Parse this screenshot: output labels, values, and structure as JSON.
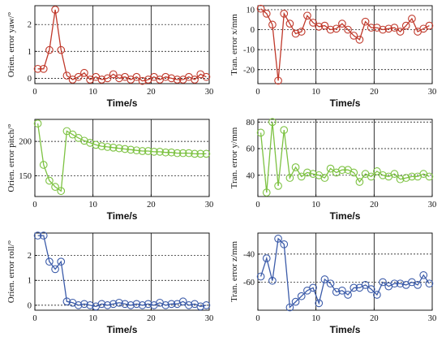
{
  "chart_data": [
    {
      "type": "line",
      "ylabel": "Orien. error yaw/°",
      "xlabel": "Time/s",
      "xlim": [
        0,
        30
      ],
      "ylim": [
        -0.2,
        2.7
      ],
      "xticks": [
        0,
        10,
        20,
        30
      ],
      "yticks": [
        0,
        1,
        2
      ],
      "grid": true,
      "color": "#c0392b",
      "x": [
        0.5,
        1.5,
        2.5,
        3.5,
        4.5,
        5.5,
        6.5,
        7.5,
        8.5,
        9.5,
        10.5,
        11.5,
        12.5,
        13.5,
        14.5,
        15.5,
        16.5,
        17.5,
        18.5,
        19.5,
        20.5,
        21.5,
        22.5,
        23.5,
        24.5,
        25.5,
        26.5,
        27.5,
        28.5,
        29.5
      ],
      "y": [
        0.35,
        0.35,
        1.05,
        2.55,
        1.05,
        0.1,
        -0.05,
        0.05,
        0.2,
        -0.05,
        0.05,
        -0.05,
        0.0,
        0.15,
        0.0,
        0.05,
        -0.05,
        0.05,
        -0.1,
        -0.05,
        0.05,
        -0.05,
        0.05,
        0.0,
        -0.05,
        -0.05,
        0.05,
        -0.05,
        0.15,
        0.05
      ]
    },
    {
      "type": "line",
      "ylabel": "Tran. error x/mm",
      "xlabel": "Time/s",
      "xlim": [
        0,
        30
      ],
      "ylim": [
        -27,
        12
      ],
      "xticks": [
        0,
        10,
        20,
        30
      ],
      "yticks": [
        -20,
        -10,
        0,
        10
      ],
      "grid": true,
      "color": "#c0392b",
      "x": [
        0.5,
        1.5,
        2.5,
        3.5,
        4.5,
        5.5,
        6.5,
        7.5,
        8.5,
        9.5,
        10.5,
        11.5,
        12.5,
        13.5,
        14.5,
        15.5,
        16.5,
        17.5,
        18.5,
        19.5,
        20.5,
        21.5,
        22.5,
        23.5,
        24.5,
        25.5,
        26.5,
        27.5,
        28.5,
        29.5
      ],
      "y": [
        10.5,
        8,
        2.5,
        -25.5,
        8,
        3,
        -2,
        -1,
        7,
        3.5,
        1.5,
        2,
        0,
        0.5,
        3,
        0,
        -3,
        -5,
        4,
        1,
        1,
        0,
        0.5,
        1,
        -1,
        2,
        5.5,
        -1,
        0.5,
        2
      ]
    },
    {
      "type": "line",
      "ylabel": "Orien. error pitch/°",
      "xlabel": "Time/s",
      "xlim": [
        0,
        30
      ],
      "ylim": [
        120,
        232
      ],
      "xticks": [
        0,
        10,
        20,
        30
      ],
      "yticks": [
        150,
        200
      ],
      "grid": true,
      "color": "#7dc242",
      "x": [
        0.5,
        1.5,
        2.5,
        3.5,
        4.5,
        5.5,
        6.5,
        7.5,
        8.5,
        9.5,
        10.5,
        11.5,
        12.5,
        13.5,
        14.5,
        15.5,
        16.5,
        17.5,
        18.5,
        19.5,
        20.5,
        21.5,
        22.5,
        23.5,
        24.5,
        25.5,
        26.5,
        27.5,
        28.5,
        29.5
      ],
      "y": [
        226,
        166,
        143,
        134,
        128,
        215,
        210,
        205,
        201,
        198,
        195,
        193,
        192,
        191,
        190,
        189,
        188,
        187,
        186,
        186,
        185,
        185,
        184,
        184,
        183,
        183,
        183,
        182,
        182,
        182
      ]
    },
    {
      "type": "line",
      "ylabel": "Tran. error y/mm",
      "xlabel": "Time/s",
      "xlim": [
        0,
        30
      ],
      "ylim": [
        24,
        82
      ],
      "xticks": [
        0,
        10,
        20,
        30
      ],
      "yticks": [
        40,
        60,
        80
      ],
      "grid": true,
      "color": "#7dc242",
      "x": [
        0.5,
        1.5,
        2.5,
        3.5,
        4.5,
        5.5,
        6.5,
        7.5,
        8.5,
        9.5,
        10.5,
        11.5,
        12.5,
        13.5,
        14.5,
        15.5,
        16.5,
        17.5,
        18.5,
        19.5,
        20.5,
        21.5,
        22.5,
        23.5,
        24.5,
        25.5,
        26.5,
        27.5,
        28.5,
        29.5
      ],
      "y": [
        72,
        27,
        80,
        32,
        74,
        38,
        46,
        39,
        42,
        41,
        40,
        38,
        45,
        42,
        44,
        44,
        42,
        35,
        41,
        39,
        43,
        40,
        39,
        41,
        37,
        38,
        39,
        39,
        41,
        39
      ]
    },
    {
      "type": "line",
      "ylabel": "Orien. error roll/°",
      "xlabel": "Time/s",
      "xlim": [
        0,
        30
      ],
      "ylim": [
        -0.2,
        2.9
      ],
      "xticks": [
        0,
        10,
        20,
        30
      ],
      "yticks": [
        0,
        1,
        2
      ],
      "grid": true,
      "color": "#3b5ba9",
      "x": [
        0.5,
        1.5,
        2.5,
        3.5,
        4.5,
        5.5,
        6.5,
        7.5,
        8.5,
        9.5,
        10.5,
        11.5,
        12.5,
        13.5,
        14.5,
        15.5,
        16.5,
        17.5,
        18.5,
        19.5,
        20.5,
        21.5,
        22.5,
        23.5,
        24.5,
        25.5,
        26.5,
        27.5,
        28.5,
        29.5
      ],
      "y": [
        2.8,
        2.8,
        1.75,
        1.45,
        1.75,
        0.15,
        0.1,
        0.0,
        0.05,
        0.0,
        -0.05,
        0.05,
        0.0,
        0.05,
        0.1,
        0.05,
        0.0,
        0.05,
        0.0,
        0.05,
        0.0,
        0.1,
        0.0,
        0.05,
        0.05,
        0.15,
        0.0,
        0.05,
        -0.05,
        0.0
      ]
    },
    {
      "type": "line",
      "ylabel": "Tran. error z/mm",
      "xlabel": "Time/s",
      "xlim": [
        0,
        30
      ],
      "ylim": [
        -80,
        -25
      ],
      "xticks": [
        0,
        10,
        20,
        30
      ],
      "yticks": [
        -60,
        -40
      ],
      "grid": true,
      "color": "#3b5ba9",
      "x": [
        0.5,
        1.5,
        2.5,
        3.5,
        4.5,
        5.5,
        6.5,
        7.5,
        8.5,
        9.5,
        10.5,
        11.5,
        12.5,
        13.5,
        14.5,
        15.5,
        16.5,
        17.5,
        18.5,
        19.5,
        20.5,
        21.5,
        22.5,
        23.5,
        24.5,
        25.5,
        26.5,
        27.5,
        28.5,
        29.5
      ],
      "y": [
        -56,
        -43,
        -59,
        -29,
        -33,
        -78,
        -74,
        -70,
        -66,
        -64,
        -75,
        -58,
        -61,
        -67,
        -66,
        -69,
        -64,
        -64,
        -62,
        -65,
        -69,
        -60,
        -63,
        -61,
        -61,
        -62,
        -60,
        -62,
        -55,
        -61
      ]
    }
  ]
}
